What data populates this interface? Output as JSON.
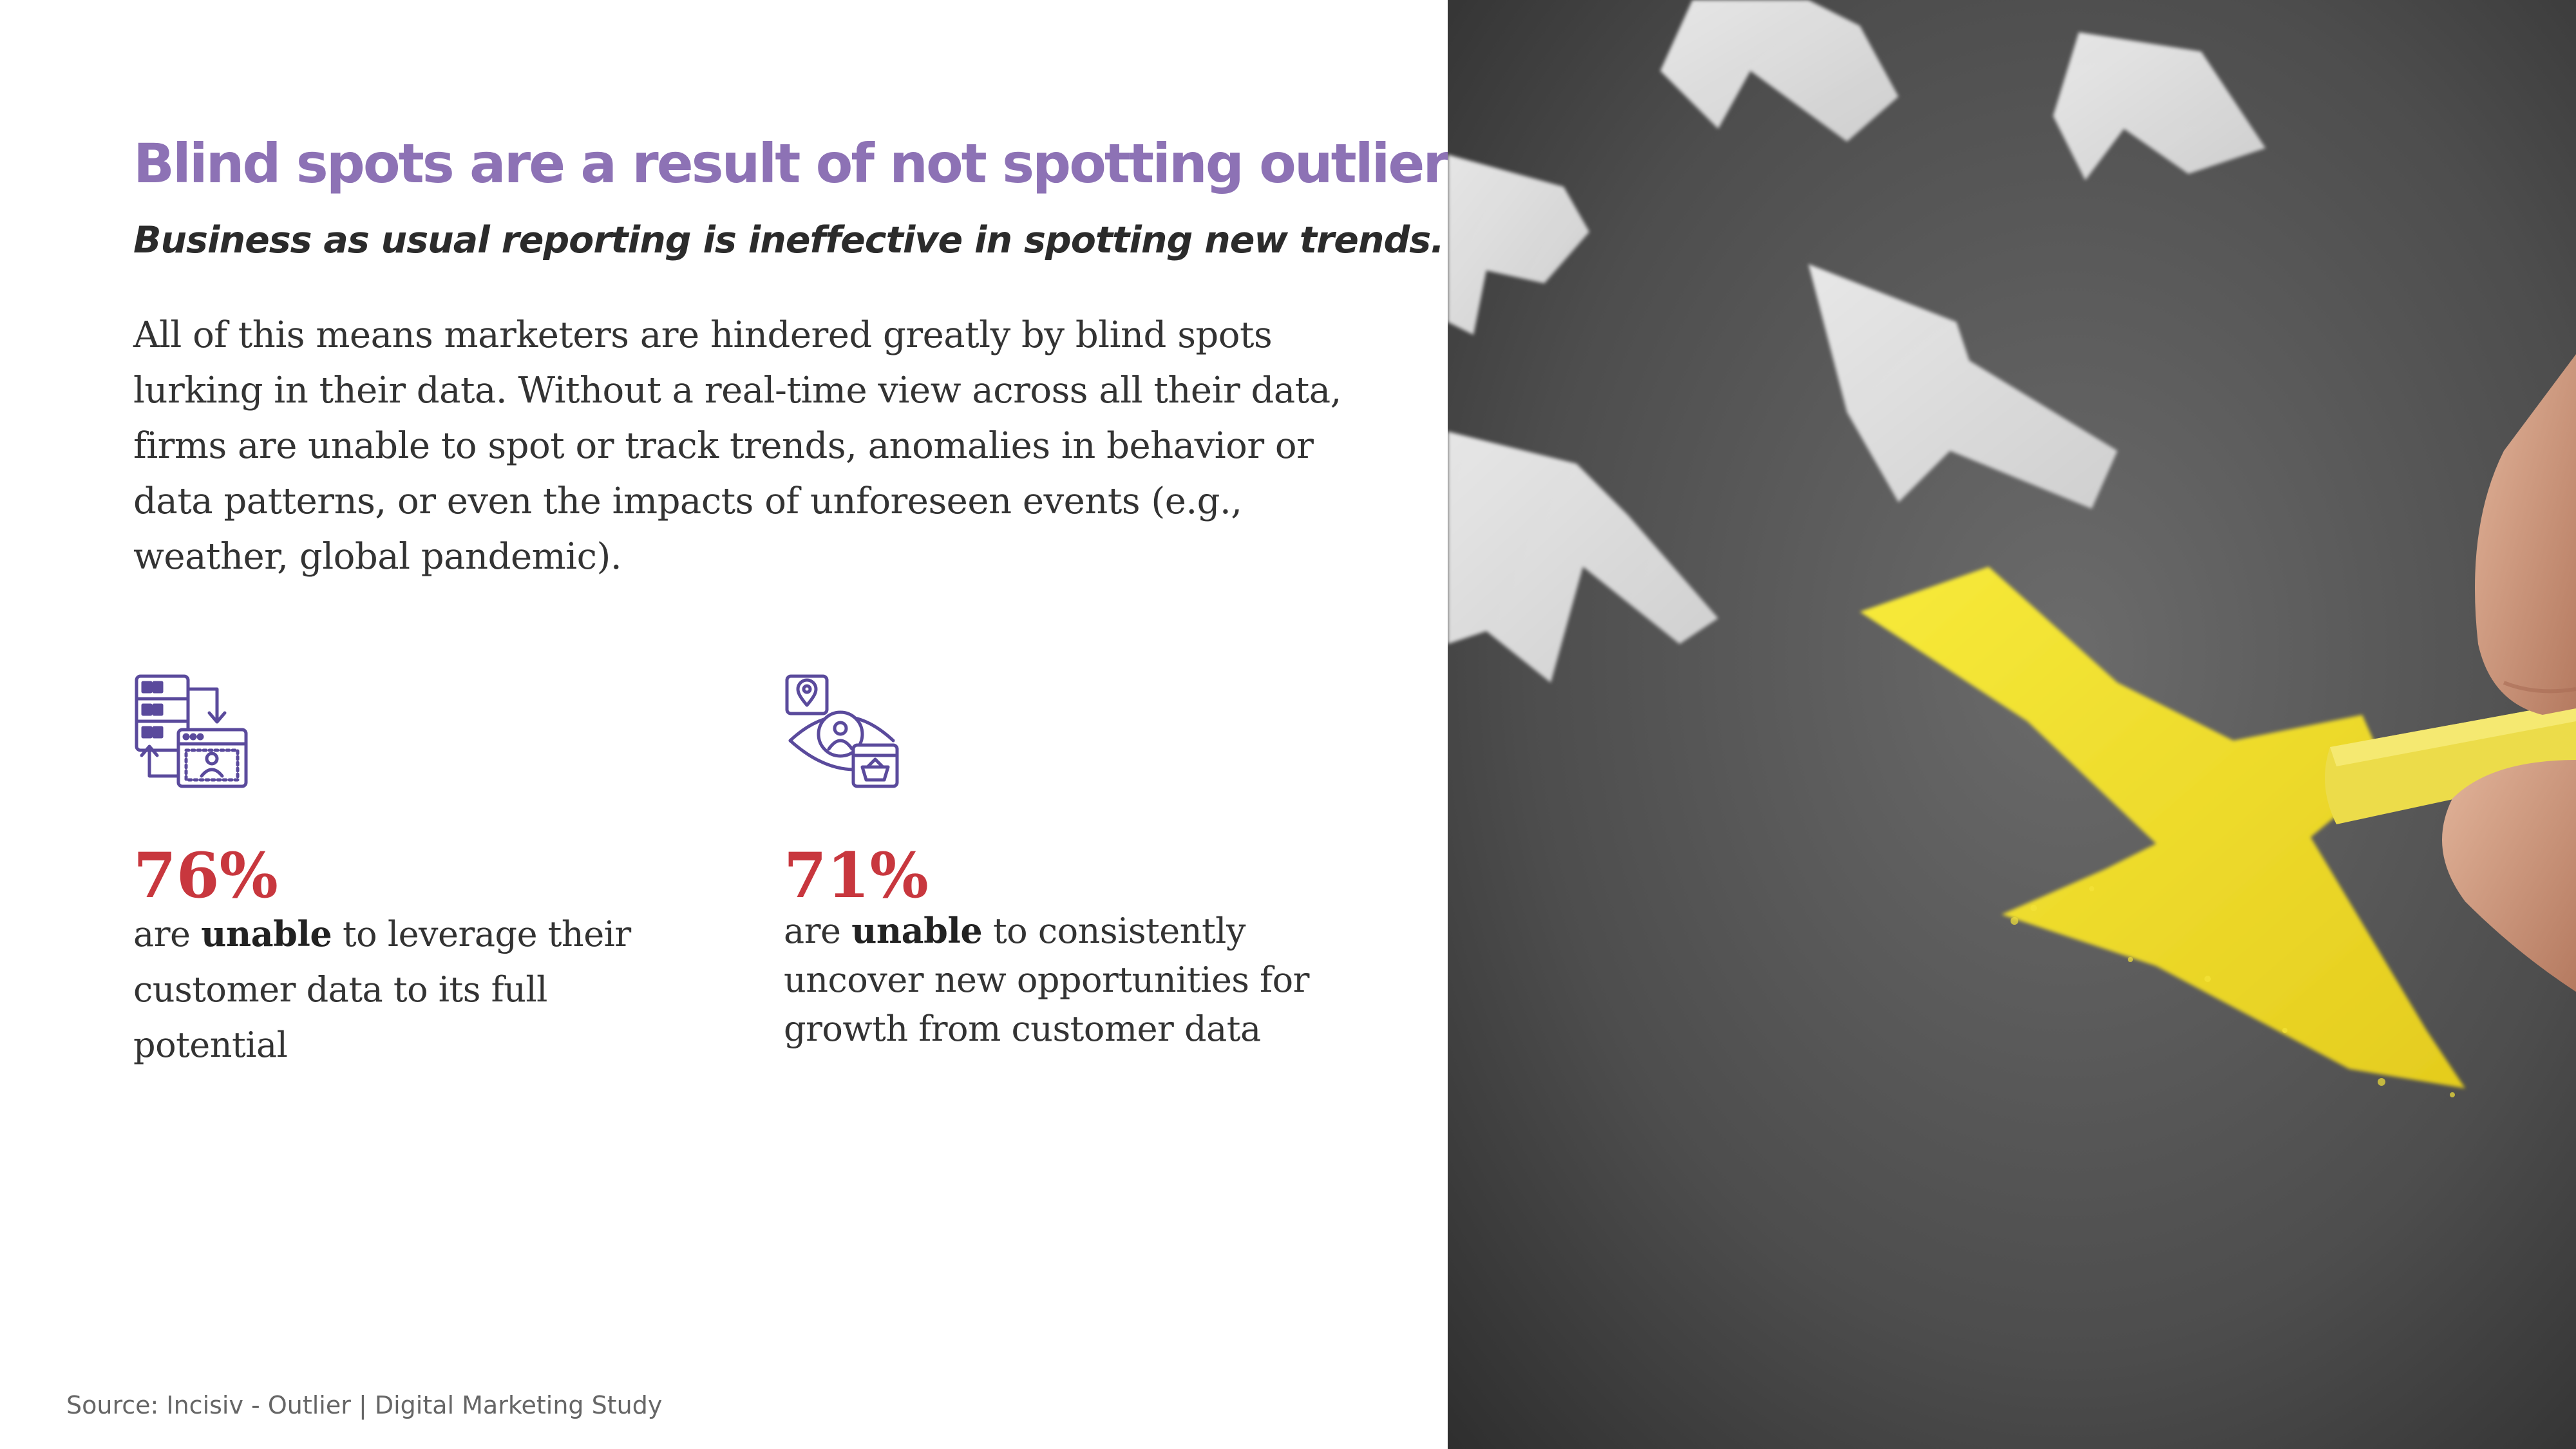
{
  "slide": {
    "title": "Blind spots are a result of not spotting outliers.",
    "subtitle": "Business as usual reporting is ineffective in spotting new trends.",
    "body_lines": [
      "All of this means marketers are hindered greatly by blind spots",
      "lurking in their data. Without a real-time view across all their data,",
      "firms are unable to spot or track trends, anomalies in behavior or",
      "data patterns, or even the impacts of unforeseen events (e.g.,",
      "weather, global pandemic)."
    ],
    "stats": [
      {
        "icon": "data-transfer-user-icon",
        "value": "76%",
        "pre": "are ",
        "bold": "unable",
        "lines": [
          " to leverage their",
          "customer data to its full",
          "potential"
        ]
      },
      {
        "icon": "customer-insight-eye-icon",
        "value": "71%",
        "pre": "are ",
        "bold": "unable",
        "lines": [
          " to consistently",
          "uncover new opportunities for",
          "growth from customer data"
        ]
      }
    ],
    "source": "Source: Incisiv - Outlier | Digital Marketing Study"
  },
  "colors": {
    "title": "#8d72b5",
    "stat_value": "#c8373e",
    "icon": "#5a4a9c",
    "chalk_yellow": "#f2e02a",
    "board": "#4a4a4a"
  },
  "photo": {
    "icon": "chalkboard-arrows-photo"
  }
}
